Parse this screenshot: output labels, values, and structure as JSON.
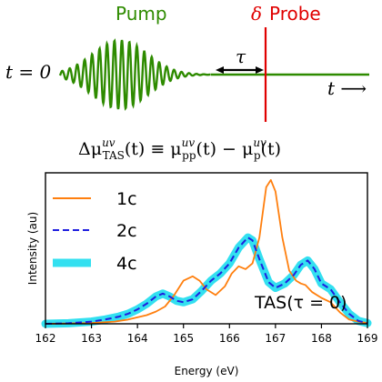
{
  "schematic": {
    "pump_label": "Pump",
    "probe_delta": "δ",
    "probe_label": "Probe",
    "time_zero": "t = 0",
    "tau": "τ",
    "time_axis": "t ⟶",
    "pump_color": "#2e8b00",
    "probe_color": "#e00000"
  },
  "equation": {
    "lhs": "Δμ",
    "lhs_sup": "uv",
    "lhs_sub": "TAS",
    "arg1": "(t) ≡ μ",
    "pp_sup": "uv",
    "pp_sub": "pp",
    "arg2": "(t) − μ",
    "p_sup": "uv",
    "p_sub": "p",
    "arg3": "(t)"
  },
  "chart_data": {
    "type": "line",
    "xlabel": "Energy (eV)",
    "ylabel": "Intensity (au)",
    "xlim": [
      162,
      169
    ],
    "ylim": [
      0,
      1.05
    ],
    "x_ticks": [
      162,
      163,
      164,
      165,
      166,
      167,
      168,
      169
    ],
    "annotation": "TAS(τ = 0)",
    "legend_position": "upper-left",
    "grid": false,
    "series": [
      {
        "name": "1c",
        "color": "#ff7f0e",
        "style": "solid",
        "points": [
          [
            162.0,
            0.0
          ],
          [
            162.5,
            0.002
          ],
          [
            163.0,
            0.006
          ],
          [
            163.5,
            0.015
          ],
          [
            163.8,
            0.03
          ],
          [
            164.0,
            0.045
          ],
          [
            164.2,
            0.06
          ],
          [
            164.4,
            0.085
          ],
          [
            164.6,
            0.12
          ],
          [
            164.8,
            0.2
          ],
          [
            165.0,
            0.3
          ],
          [
            165.2,
            0.33
          ],
          [
            165.35,
            0.3
          ],
          [
            165.5,
            0.24
          ],
          [
            165.7,
            0.2
          ],
          [
            165.9,
            0.26
          ],
          [
            166.05,
            0.35
          ],
          [
            166.2,
            0.4
          ],
          [
            166.35,
            0.38
          ],
          [
            166.5,
            0.42
          ],
          [
            166.65,
            0.6
          ],
          [
            166.8,
            0.95
          ],
          [
            166.9,
            1.0
          ],
          [
            167.0,
            0.92
          ],
          [
            167.15,
            0.6
          ],
          [
            167.3,
            0.37
          ],
          [
            167.45,
            0.3
          ],
          [
            167.55,
            0.28
          ],
          [
            167.65,
            0.27
          ],
          [
            167.8,
            0.22
          ],
          [
            168.0,
            0.18
          ],
          [
            168.2,
            0.15
          ],
          [
            168.4,
            0.08
          ],
          [
            168.6,
            0.03
          ],
          [
            168.8,
            0.015
          ],
          [
            169.0,
            0.005
          ]
        ]
      },
      {
        "name": "2c",
        "color": "#1f1fdf",
        "style": "dashed",
        "points": [
          [
            162.0,
            0.0
          ],
          [
            162.5,
            0.004
          ],
          [
            163.0,
            0.015
          ],
          [
            163.3,
            0.03
          ],
          [
            163.6,
            0.05
          ],
          [
            163.8,
            0.07
          ],
          [
            164.0,
            0.1
          ],
          [
            164.2,
            0.14
          ],
          [
            164.4,
            0.19
          ],
          [
            164.55,
            0.21
          ],
          [
            164.7,
            0.19
          ],
          [
            164.85,
            0.16
          ],
          [
            165.0,
            0.15
          ],
          [
            165.2,
            0.17
          ],
          [
            165.4,
            0.23
          ],
          [
            165.6,
            0.3
          ],
          [
            165.8,
            0.35
          ],
          [
            166.0,
            0.42
          ],
          [
            166.2,
            0.53
          ],
          [
            166.4,
            0.6
          ],
          [
            166.5,
            0.58
          ],
          [
            166.65,
            0.45
          ],
          [
            166.85,
            0.29
          ],
          [
            167.0,
            0.25
          ],
          [
            167.2,
            0.28
          ],
          [
            167.4,
            0.34
          ],
          [
            167.55,
            0.41
          ],
          [
            167.7,
            0.44
          ],
          [
            167.85,
            0.38
          ],
          [
            168.0,
            0.28
          ],
          [
            168.2,
            0.24
          ],
          [
            168.4,
            0.15
          ],
          [
            168.6,
            0.07
          ],
          [
            168.8,
            0.02
          ],
          [
            169.0,
            0.005
          ]
        ]
      },
      {
        "name": "4c",
        "color": "#33e0f0",
        "style": "thick",
        "points": [
          [
            162.0,
            0.0
          ],
          [
            162.5,
            0.004
          ],
          [
            163.0,
            0.015
          ],
          [
            163.3,
            0.03
          ],
          [
            163.6,
            0.05
          ],
          [
            163.8,
            0.07
          ],
          [
            164.0,
            0.1
          ],
          [
            164.2,
            0.14
          ],
          [
            164.4,
            0.19
          ],
          [
            164.55,
            0.21
          ],
          [
            164.7,
            0.19
          ],
          [
            164.85,
            0.16
          ],
          [
            165.0,
            0.15
          ],
          [
            165.2,
            0.17
          ],
          [
            165.4,
            0.23
          ],
          [
            165.6,
            0.3
          ],
          [
            165.8,
            0.35
          ],
          [
            166.0,
            0.42
          ],
          [
            166.2,
            0.53
          ],
          [
            166.4,
            0.6
          ],
          [
            166.5,
            0.58
          ],
          [
            166.65,
            0.45
          ],
          [
            166.85,
            0.29
          ],
          [
            167.0,
            0.25
          ],
          [
            167.2,
            0.28
          ],
          [
            167.4,
            0.34
          ],
          [
            167.55,
            0.41
          ],
          [
            167.7,
            0.44
          ],
          [
            167.85,
            0.38
          ],
          [
            168.0,
            0.28
          ],
          [
            168.2,
            0.24
          ],
          [
            168.4,
            0.15
          ],
          [
            168.6,
            0.07
          ],
          [
            168.8,
            0.02
          ],
          [
            169.0,
            0.005
          ]
        ]
      }
    ]
  }
}
